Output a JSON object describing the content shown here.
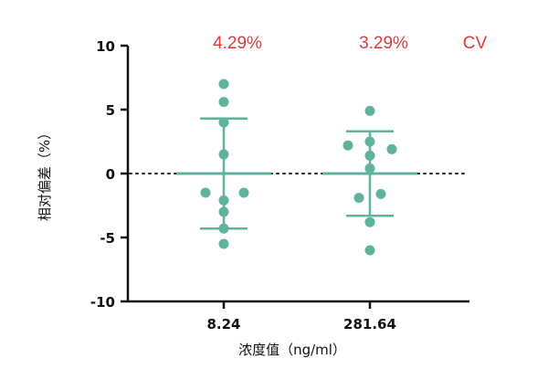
{
  "chart_data": {
    "type": "scatter",
    "title": "",
    "xlabel": "浓度值（ng/ml）",
    "ylabel": "相对偏差（%）",
    "ylim": [
      -10,
      10
    ],
    "yticks": [
      10,
      5,
      0,
      -5,
      -10
    ],
    "ytick_labels": [
      "10",
      "5",
      "0",
      "-5",
      "-10"
    ],
    "categories": [
      "8.24",
      "281.64"
    ],
    "series": [
      {
        "category": "8.24",
        "values": [
          7.0,
          5.6,
          4.0,
          1.5,
          -1.5,
          -1.5,
          -2.1,
          -3.0,
          -4.3,
          -5.5
        ],
        "mean": 0.0,
        "sd_upper": 4.3,
        "sd_lower": -4.3,
        "cv": "4.29%"
      },
      {
        "category": "281.64",
        "values": [
          4.9,
          2.5,
          2.2,
          1.9,
          1.4,
          0.4,
          -1.6,
          -1.9,
          -3.8,
          -6.0
        ],
        "mean": 0.0,
        "sd_upper": 3.3,
        "sd_lower": -3.3,
        "cv": "3.29%"
      }
    ],
    "cv_label": "CV",
    "reference_line": 0,
    "grid": false,
    "colors": {
      "points": "#5fb39d",
      "annotation": "#e03a3a",
      "axis": "#111111"
    }
  }
}
